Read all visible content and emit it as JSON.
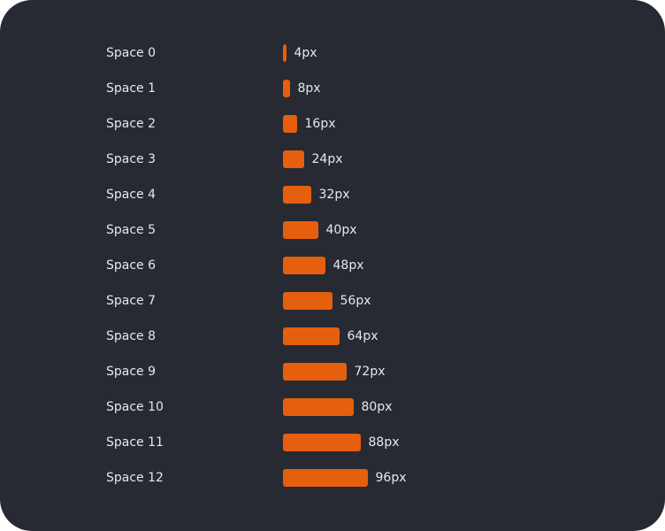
{
  "chart_data": {
    "type": "bar",
    "categories": [
      "Space 0",
      "Space 1",
      "Space 2",
      "Space 3",
      "Space 4",
      "Space 5",
      "Space 6",
      "Space 7",
      "Space 8",
      "Space 9",
      "Space 10",
      "Space 11",
      "Space 12"
    ],
    "values": [
      4,
      8,
      16,
      24,
      32,
      40,
      48,
      56,
      64,
      72,
      80,
      88,
      96
    ],
    "value_labels": [
      "4px",
      "8px",
      "16px",
      "24px",
      "32px",
      "40px",
      "48px",
      "56px",
      "64px",
      "72px",
      "80px",
      "88px",
      "96px"
    ],
    "color": "#e65f0e"
  }
}
